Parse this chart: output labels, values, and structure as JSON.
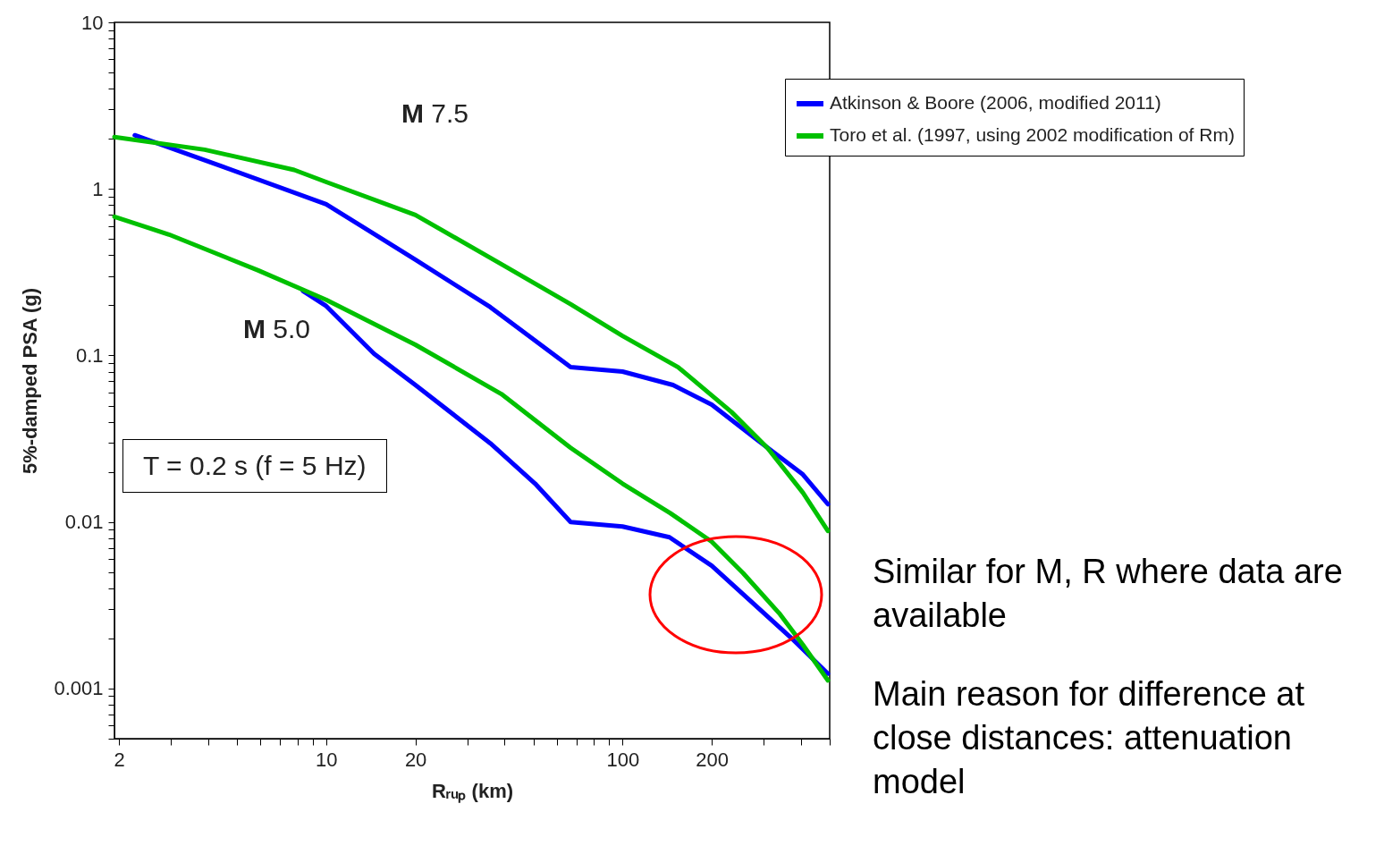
{
  "chart_data": {
    "type": "line",
    "xlabel": "Rᵣᵤₚ (km)",
    "ylabel": "5%-damped PSA (g)",
    "log": "xy",
    "xlim": [
      1.93,
      500
    ],
    "ylim": [
      0.0005,
      10
    ],
    "xticks": [
      2,
      {
        "value": 3,
        "label": null
      },
      {
        "value": 4,
        "label": null
      },
      {
        "value": 5,
        "label": null
      },
      {
        "value": 6,
        "label": null
      },
      {
        "value": 7,
        "label": null
      },
      {
        "value": 8,
        "label": null
      },
      {
        "value": 9,
        "label": null
      },
      10,
      20,
      {
        "value": 30,
        "label": null
      },
      {
        "value": 40,
        "label": null
      },
      {
        "value": 50,
        "label": null
      },
      {
        "value": 60,
        "label": null
      },
      {
        "value": 70,
        "label": null
      },
      {
        "value": 80,
        "label": null
      },
      {
        "value": 90,
        "label": null
      },
      100,
      200,
      {
        "value": 300,
        "label": null
      },
      {
        "value": 400,
        "label": null
      },
      {
        "value": 500,
        "label": null
      }
    ],
    "yticks": [
      {
        "value": 0.0005,
        "label": null
      },
      {
        "value": 0.0006,
        "label": null
      },
      {
        "value": 0.0007,
        "label": null
      },
      {
        "value": 0.0008,
        "label": null
      },
      {
        "value": 0.0009,
        "label": null
      },
      0.001,
      {
        "value": 0.002,
        "label": null
      },
      {
        "value": 0.003,
        "label": null
      },
      {
        "value": 0.004,
        "label": null
      },
      {
        "value": 0.005,
        "label": null
      },
      {
        "value": 0.006,
        "label": null
      },
      {
        "value": 0.007,
        "label": null
      },
      {
        "value": 0.008,
        "label": null
      },
      {
        "value": 0.009,
        "label": null
      },
      0.01,
      {
        "value": 0.02,
        "label": null
      },
      {
        "value": 0.03,
        "label": null
      },
      {
        "value": 0.04,
        "label": null
      },
      {
        "value": 0.05,
        "label": null
      },
      {
        "value": 0.06,
        "label": null
      },
      {
        "value": 0.07,
        "label": null
      },
      {
        "value": 0.08,
        "label": null
      },
      {
        "value": 0.09,
        "label": null
      },
      0.1,
      {
        "value": 0.2,
        "label": null
      },
      {
        "value": 0.3,
        "label": null
      },
      {
        "value": 0.4,
        "label": null
      },
      {
        "value": 0.5,
        "label": null
      },
      {
        "value": 0.6,
        "label": null
      },
      {
        "value": 0.7,
        "label": null
      },
      {
        "value": 0.8,
        "label": null
      },
      {
        "value": 0.9,
        "label": null
      },
      1,
      {
        "value": 2,
        "label": null
      },
      {
        "value": 3,
        "label": null
      },
      {
        "value": 4,
        "label": null
      },
      {
        "value": 5,
        "label": null
      },
      {
        "value": 6,
        "label": null
      },
      {
        "value": 7,
        "label": null
      },
      {
        "value": 8,
        "label": null
      },
      {
        "value": 9,
        "label": null
      },
      10
    ],
    "grid": false,
    "legend": "top right",
    "marker": "none",
    "line_style": "solid",
    "series": [
      {
        "name": "Atkinson & Boore (2006, modified 2011)",
        "color": "#0000ff",
        "x": [
          2.26,
          4.48,
          10,
          20,
          35.8,
          66.8,
          100,
          148,
          200,
          287,
          406,
          493
        ],
        "values": [
          2.1,
          1.36,
          0.81,
          0.376,
          0.195,
          0.085,
          0.08,
          0.0665,
          0.0506,
          0.0308,
          0.0193,
          0.0128
        ]
      },
      {
        "name": "Toro et al. (1997, using 2002 modification of Rm)",
        "color": "#00c000",
        "x": [
          1.93,
          3.89,
          7.8,
          10,
          20,
          39,
          66.8,
          100,
          154,
          233,
          308,
          406,
          493
        ],
        "values": [
          2.05,
          1.72,
          1.3,
          1.1,
          0.698,
          0.353,
          0.203,
          0.131,
          0.085,
          0.0458,
          0.0279,
          0.015,
          0.00884
        ]
      },
      {
        "color": "#0000ff",
        "x": [
          8.35,
          10,
          14.5,
          20,
          35.8,
          50.7,
          66.8,
          100,
          144,
          200,
          268,
          378,
          493
        ],
        "values": [
          0.244,
          0.198,
          0.1025,
          0.0665,
          0.0297,
          0.017,
          0.01,
          0.0094,
          0.0081,
          0.00546,
          0.0034,
          0.00195,
          0.00123
        ]
      },
      {
        "color": "#00c000",
        "x": [
          1.93,
          2.95,
          5.9,
          10,
          20,
          39,
          66.8,
          100,
          145,
          200,
          255,
          338,
          406,
          493
        ],
        "values": [
          0.681,
          0.532,
          0.324,
          0.216,
          0.116,
          0.0587,
          0.0279,
          0.017,
          0.0113,
          0.00762,
          0.00494,
          0.00283,
          0.00183,
          0.00112
        ]
      }
    ],
    "annotations": [
      "M 7.5",
      "M 5.0",
      "T = 0.2 s (f = 5 Hz)",
      "Similar for M, R where data are available",
      "Main reason for difference at close distances: attenuation model"
    ]
  }
}
